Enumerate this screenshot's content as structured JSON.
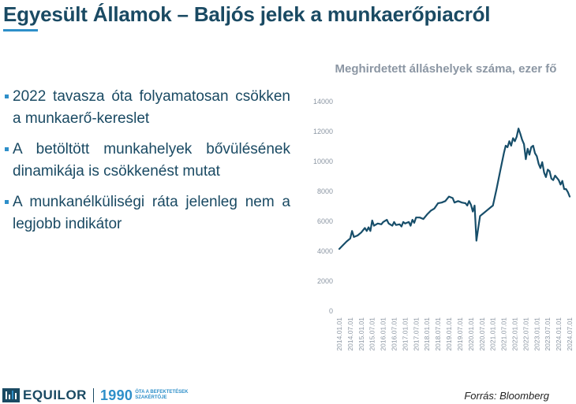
{
  "slide": {
    "title": "Egyesült Államok – Baljós jelek a munkaerőpiacról",
    "bullets": [
      "2022 tavasza óta folyamatosan csökken a munkaerő-kereslet",
      "A betöltött munkahelyek bővülésének dinamikája is csökkenést mutat",
      "A munkanélküliségi ráta jelenleg nem a legjobb indikátor"
    ],
    "source": "Forrás: Bloomberg"
  },
  "footer": {
    "brand": "EQUILOR",
    "year": "1990",
    "tagline_line1": "ÓTA A BEFEKTETÉSEK",
    "tagline_line2": "SZAKÉRTŐJE"
  },
  "colors": {
    "title": "#1a4a63",
    "accent": "#2e8fc9",
    "line": "#174e6a",
    "axis_text": "#8b96a3"
  },
  "chart_data": {
    "type": "line",
    "title": "Meghirdetett álláshelyek száma, ezer fő",
    "ylim": [
      0,
      14000
    ],
    "yticks": [
      0,
      2000,
      4000,
      6000,
      8000,
      10000,
      12000,
      14000
    ],
    "grid": false,
    "xlim": [
      "2014.01",
      "2024.07"
    ],
    "xtick_labels": [
      "2014.01.01",
      "2014.07.01",
      "2015.01.01",
      "2015.07.01",
      "2016.01.01",
      "2016.07.01",
      "2017.01.01",
      "2017.07.01",
      "2018.01.01",
      "2018.07.01",
      "2019.01.01",
      "2019.07.01",
      "2020.01.01",
      "2020.07.01",
      "2021.01.01",
      "2021.07.01",
      "2022.01.01",
      "2022.07.01",
      "2023.01.01",
      "2023.07.01",
      "2024.01.01",
      "2024.07.01"
    ],
    "series": [
      {
        "points": [
          [
            "2014.01",
            4100
          ],
          [
            "2014.03",
            4350
          ],
          [
            "2014.05",
            4600
          ],
          [
            "2014.07",
            4800
          ],
          [
            "2014.08",
            5300
          ],
          [
            "2014.09",
            4900
          ],
          [
            "2014.11",
            5000
          ],
          [
            "2015.01",
            5200
          ],
          [
            "2015.03",
            5500
          ],
          [
            "2015.04",
            5300
          ],
          [
            "2015.05",
            5550
          ],
          [
            "2015.06",
            5300
          ],
          [
            "2015.07",
            6000
          ],
          [
            "2015.08",
            5650
          ],
          [
            "2015.10",
            5800
          ],
          [
            "2015.12",
            5750
          ],
          [
            "2016.01",
            5900
          ],
          [
            "2016.03",
            6050
          ],
          [
            "2016.04",
            5800
          ],
          [
            "2016.06",
            5650
          ],
          [
            "2016.07",
            5900
          ],
          [
            "2016.08",
            5700
          ],
          [
            "2016.10",
            5750
          ],
          [
            "2016.11",
            5600
          ],
          [
            "2016.12",
            5900
          ],
          [
            "2017.01",
            5800
          ],
          [
            "2017.03",
            5900
          ],
          [
            "2017.04",
            5650
          ],
          [
            "2017.05",
            6050
          ],
          [
            "2017.06",
            5850
          ],
          [
            "2017.07",
            6200
          ],
          [
            "2017.09",
            6200
          ],
          [
            "2017.11",
            6100
          ],
          [
            "2018.01",
            6400
          ],
          [
            "2018.03",
            6650
          ],
          [
            "2018.05",
            6800
          ],
          [
            "2018.07",
            7150
          ],
          [
            "2018.09",
            7200
          ],
          [
            "2018.11",
            7300
          ],
          [
            "2019.01",
            7600
          ],
          [
            "2019.03",
            7500
          ],
          [
            "2019.04",
            7200
          ],
          [
            "2019.06",
            7300
          ],
          [
            "2019.08",
            7200
          ],
          [
            "2019.10",
            7150
          ],
          [
            "2019.11",
            7000
          ],
          [
            "2019.12",
            7300
          ],
          [
            "2020.01",
            7050
          ],
          [
            "2020.02",
            6600
          ],
          [
            "2020.03",
            7000
          ],
          [
            "2020.04",
            4650
          ],
          [
            "2020.05",
            5500
          ],
          [
            "2020.06",
            6300
          ],
          [
            "2020.08",
            6500
          ],
          [
            "2020.10",
            6700
          ],
          [
            "2020.12",
            6900
          ],
          [
            "2021.01",
            7000
          ],
          [
            "2021.03",
            8100
          ],
          [
            "2021.05",
            9300
          ],
          [
            "2021.07",
            10500
          ],
          [
            "2021.08",
            11000
          ],
          [
            "2021.09",
            10900
          ],
          [
            "2021.10",
            11300
          ],
          [
            "2021.11",
            11000
          ],
          [
            "2021.12",
            11500
          ],
          [
            "2022.01",
            11300
          ],
          [
            "2022.02",
            11600
          ],
          [
            "2022.03",
            12150
          ],
          [
            "2022.04",
            11800
          ],
          [
            "2022.05",
            11400
          ],
          [
            "2022.06",
            11100
          ],
          [
            "2022.07",
            10100
          ],
          [
            "2022.08",
            10800
          ],
          [
            "2022.09",
            10400
          ],
          [
            "2022.10",
            10900
          ],
          [
            "2022.11",
            11000
          ],
          [
            "2022.12",
            10500
          ],
          [
            "2023.01",
            10300
          ],
          [
            "2023.02",
            9800
          ],
          [
            "2023.03",
            9500
          ],
          [
            "2023.04",
            9900
          ],
          [
            "2023.05",
            9200
          ],
          [
            "2023.06",
            8900
          ],
          [
            "2023.07",
            9400
          ],
          [
            "2023.08",
            9300
          ],
          [
            "2023.09",
            8800
          ],
          [
            "2023.10",
            8700
          ],
          [
            "2023.11",
            9000
          ],
          [
            "2023.12",
            8850
          ],
          [
            "2024.01",
            8700
          ],
          [
            "2024.02",
            8400
          ],
          [
            "2024.03",
            8650
          ],
          [
            "2024.04",
            8100
          ],
          [
            "2024.05",
            8100
          ],
          [
            "2024.06",
            7900
          ],
          [
            "2024.07",
            7600
          ]
        ]
      }
    ]
  }
}
